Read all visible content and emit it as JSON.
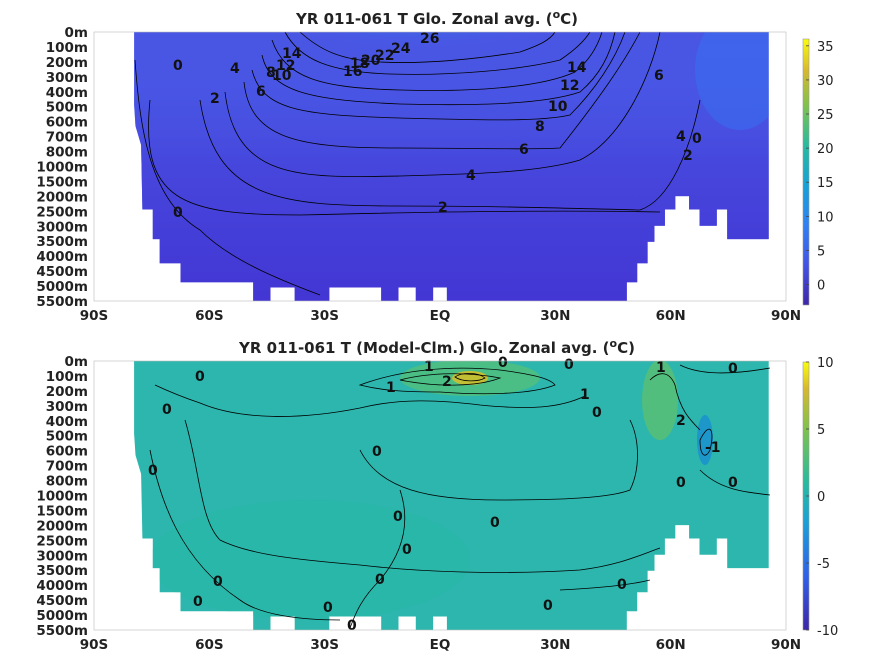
{
  "chart_data": [
    {
      "type": "heatmap",
      "title_main": "YR 011-061 T Glo. Zonal avg. (",
      "title_unit_sup": "o",
      "title_unit": "C)",
      "x_ticks": [
        "90S",
        "60S",
        "30S",
        "EQ",
        "30N",
        "60N",
        "90N"
      ],
      "y_ticks": [
        "0m",
        "100m",
        "200m",
        "300m",
        "400m",
        "500m",
        "600m",
        "700m",
        "800m",
        "1000m",
        "1500m",
        "2000m",
        "2500m",
        "3000m",
        "3500m",
        "4000m",
        "4500m",
        "5000m",
        "5500m"
      ],
      "colorbar_ticks": [
        "35",
        "30",
        "25",
        "20",
        "15",
        "10",
        "5",
        "0"
      ],
      "colorbar_range": [
        -3,
        36
      ],
      "contour_labels": [
        "26",
        "24",
        "22",
        "20",
        "18",
        "16",
        "14",
        "12",
        "10",
        "8",
        "6",
        "4",
        "2",
        "0",
        "14",
        "12",
        "10",
        "8",
        "6",
        "4",
        "2",
        "0",
        "6",
        "4",
        "2",
        "0"
      ]
    },
    {
      "type": "heatmap",
      "title_main": "YR 011-061 T (Model-Clm.) Glo. Zonal avg. (",
      "title_unit_sup": "o",
      "title_unit": "C)",
      "x_ticks": [
        "90S",
        "60S",
        "30S",
        "EQ",
        "30N",
        "60N",
        "90N"
      ],
      "y_ticks": [
        "0m",
        "100m",
        "200m",
        "300m",
        "400m",
        "500m",
        "600m",
        "700m",
        "800m",
        "1000m",
        "1500m",
        "2000m",
        "2500m",
        "3000m",
        "3500m",
        "4000m",
        "4500m",
        "5000m",
        "5500m"
      ],
      "colorbar_ticks": [
        "10",
        "5",
        "0",
        "-5",
        "-10"
      ],
      "colorbar_range": [
        -10,
        10
      ],
      "contour_labels": [
        "1",
        "0",
        "0",
        "2",
        "1",
        "1",
        "0",
        "0",
        "0",
        "0",
        "0",
        "1",
        "2",
        "-1",
        "0",
        "0",
        "0",
        "0",
        "0",
        "0",
        "0",
        "0",
        "0",
        "0",
        "0",
        "0",
        "0"
      ]
    }
  ]
}
